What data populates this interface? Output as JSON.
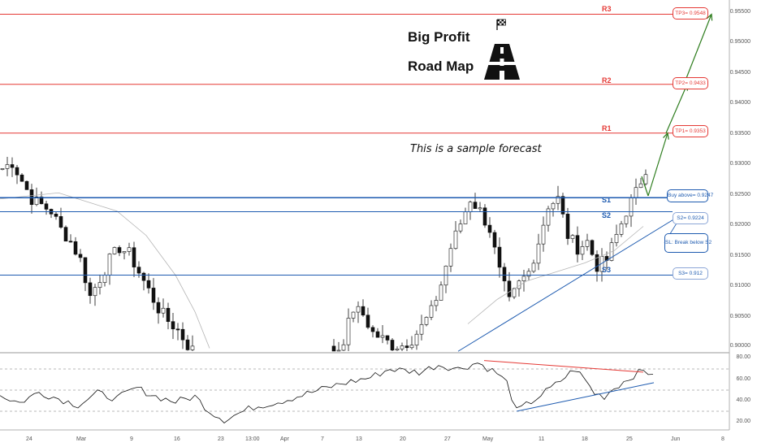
{
  "header": {
    "title_line1": "Big Profit",
    "title_line2": "Road Map",
    "sample_text": "This is a sample forecast"
  },
  "icons": {
    "flag": "checkered-flag-icon",
    "road": "road-icon"
  },
  "levels": {
    "r3": {
      "label": "R3",
      "tag": "TP3= 0.9548",
      "price": 0.9548
    },
    "r2": {
      "label": "R2",
      "tag": "TP2= 0.9433",
      "price": 0.9433
    },
    "r1": {
      "label": "R1",
      "tag": "TP1= 0.9353",
      "price": 0.9353
    },
    "buy": {
      "tag": "Buy above= 0.9247",
      "price": 0.9247
    },
    "s1": {
      "label": "S1"
    },
    "s2": {
      "label": "S2",
      "tag": "S2= 0.9224",
      "price": 0.9224
    },
    "sl": {
      "tag": "SL: Break below S2"
    },
    "s3": {
      "label": "S3",
      "tag": "S3= 0.912",
      "price": 0.912
    }
  },
  "colors": {
    "resistance": "#e53935",
    "support": "#1e5bb0",
    "forecast_arrow": "#2e7d1e",
    "bull_candle": "#ffffff",
    "bear_candle": "#111111",
    "rsi_line": "#111111",
    "divergence_down": "#e53935",
    "divergence_up": "#1e5bb0"
  },
  "chart_data": [
    {
      "type": "candlestick",
      "instrument_timeframe": "daily",
      "price_axis": {
        "ticks": [
          "0.95500",
          "0.95000",
          "0.94500",
          "0.94000",
          "0.93500",
          "0.93000",
          "0.92500",
          "0.92000",
          "0.91500",
          "0.91000",
          "0.90500",
          "0.90000"
        ],
        "ylim": [
          0.8995,
          0.9562
        ]
      },
      "x_axis": {
        "ticks": [
          "24",
          "Mar",
          "9",
          "16",
          "23",
          "13:00",
          "Apr",
          "7",
          "13",
          "20",
          "27",
          "May",
          "11",
          "18",
          "25",
          "Jun",
          "8"
        ]
      },
      "price_path": [
        [
          0,
          0.9295
        ],
        [
          2,
          0.9305
        ],
        [
          4,
          0.9275
        ],
        [
          6,
          0.9245
        ],
        [
          8,
          0.9235
        ],
        [
          10,
          0.9225
        ],
        [
          12,
          0.9195
        ],
        [
          14,
          0.9175
        ],
        [
          16,
          0.9145
        ],
        [
          18,
          0.9085
        ],
        [
          20,
          0.9115
        ],
        [
          22,
          0.9145
        ],
        [
          24,
          0.9165
        ],
        [
          26,
          0.9155
        ],
        [
          28,
          0.9125
        ],
        [
          30,
          0.9095
        ],
        [
          32,
          0.9065
        ],
        [
          34,
          0.9045
        ],
        [
          36,
          0.903
        ],
        [
          38,
          0.9005
        ],
        [
          40,
          0.899
        ],
        [
          68,
          0.8985
        ],
        [
          70,
          0.9015
        ],
        [
          72,
          0.9065
        ],
        [
          74,
          0.9055
        ],
        [
          76,
          0.9025
        ],
        [
          78,
          0.9015
        ],
        [
          80,
          0.9005
        ],
        [
          82,
          0.9005
        ],
        [
          84,
          0.9015
        ],
        [
          86,
          0.9035
        ],
        [
          88,
          0.906
        ],
        [
          90,
          0.9105
        ],
        [
          92,
          0.9165
        ],
        [
          94,
          0.9205
        ],
        [
          96,
          0.9245
        ],
        [
          98,
          0.9225
        ],
        [
          100,
          0.9195
        ],
        [
          102,
          0.9125
        ],
        [
          104,
          0.9075
        ],
        [
          106,
          0.9105
        ],
        [
          108,
          0.9125
        ],
        [
          110,
          0.9175
        ],
        [
          112,
          0.9235
        ],
        [
          114,
          0.9245
        ],
        [
          116,
          0.9185
        ],
        [
          118,
          0.9165
        ],
        [
          120,
          0.9175
        ],
        [
          122,
          0.9135
        ],
        [
          124,
          0.9145
        ],
        [
          126,
          0.9185
        ],
        [
          128,
          0.9225
        ],
        [
          130,
          0.9255
        ],
        [
          131,
          0.9275
        ],
        [
          132,
          0.9285
        ]
      ],
      "moving_average": [
        [
          0,
          0.9245
        ],
        [
          12,
          0.9255
        ],
        [
          18,
          0.924
        ],
        [
          24,
          0.9225
        ],
        [
          30,
          0.9185
        ],
        [
          36,
          0.912
        ],
        [
          40,
          0.906
        ],
        [
          43,
          0.9
        ],
        [
          96,
          0.904
        ],
        [
          102,
          0.908
        ],
        [
          108,
          0.911
        ],
        [
          114,
          0.9125
        ],
        [
          120,
          0.914
        ],
        [
          126,
          0.916
        ],
        [
          132,
          0.92
        ]
      ],
      "horizontal_levels": [
        0.9548,
        0.9433,
        0.9353,
        0.9247,
        0.9224,
        0.912
      ],
      "trendline": [
        [
          94,
          0.8995
        ],
        [
          140,
          0.922
        ]
      ],
      "forecast_path": [
        [
          133,
          0.925
        ],
        [
          137,
          0.9353
        ],
        [
          141,
          0.9433
        ],
        [
          146,
          0.9548
        ]
      ]
    },
    {
      "type": "line",
      "indicator": "RSI",
      "y_axis": {
        "ticks": [
          "80.00",
          "60.00",
          "40.00",
          "20.00"
        ],
        "ylim": [
          10,
          85
        ]
      },
      "values": [
        [
          0,
          45
        ],
        [
          4,
          38
        ],
        [
          8,
          48
        ],
        [
          12,
          42
        ],
        [
          16,
          36
        ],
        [
          20,
          47
        ],
        [
          24,
          42
        ],
        [
          28,
          52
        ],
        [
          32,
          44
        ],
        [
          36,
          39
        ],
        [
          40,
          44
        ],
        [
          43,
          30
        ],
        [
          46,
          22
        ],
        [
          52,
          34
        ],
        [
          58,
          40
        ],
        [
          64,
          48
        ],
        [
          70,
          56
        ],
        [
          76,
          62
        ],
        [
          80,
          70
        ],
        [
          86,
          67
        ],
        [
          90,
          74
        ],
        [
          94,
          70
        ],
        [
          98,
          76
        ],
        [
          102,
          66
        ],
        [
          104,
          57
        ],
        [
          106,
          30
        ],
        [
          110,
          42
        ],
        [
          114,
          55
        ],
        [
          118,
          70
        ],
        [
          120,
          60
        ],
        [
          122,
          47
        ],
        [
          124,
          44
        ],
        [
          126,
          52
        ],
        [
          130,
          64
        ],
        [
          132,
          68
        ],
        [
          134,
          65
        ]
      ],
      "divergence_lines": [
        [
          [
            100,
            78
          ],
          [
            132,
            67
          ]
        ],
        [
          [
            106,
            30
          ],
          [
            140,
            57
          ]
        ]
      ]
    }
  ]
}
